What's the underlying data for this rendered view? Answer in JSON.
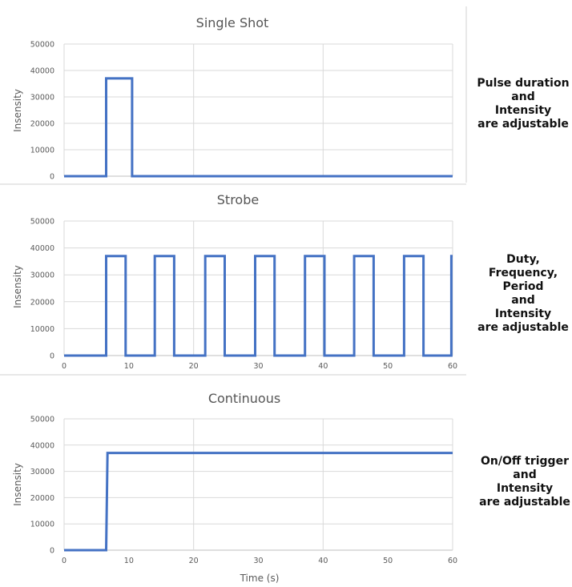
{
  "chart_data": [
    {
      "type": "line",
      "title": "Single Shot",
      "xlabel": "",
      "ylabel": "Insensity",
      "xlim": [
        0,
        60
      ],
      "ylim": [
        0,
        50000
      ],
      "yticks": [
        0,
        10000,
        20000,
        30000,
        40000,
        50000
      ],
      "xticks": [],
      "grid": "horizontal and vertical",
      "series": [
        {
          "x": [
            0,
            6.5,
            6.5,
            10.5,
            10.5,
            60
          ],
          "y": [
            0,
            0,
            37000,
            37000,
            0,
            0
          ]
        }
      ],
      "note": [
        "Pulse duration",
        "and",
        "Intensity",
        "are adjustable"
      ]
    },
    {
      "type": "line",
      "title": "Strobe",
      "xlabel": "",
      "ylabel": "Insensity",
      "xlim": [
        0,
        60
      ],
      "ylim": [
        0,
        50000
      ],
      "yticks": [
        0,
        10000,
        20000,
        30000,
        40000,
        50000
      ],
      "xticks": [
        0,
        10,
        20,
        30,
        40,
        50,
        60
      ],
      "grid": "horizontal and vertical",
      "series": [
        {
          "x": [
            0,
            6.5,
            6.5,
            9.5,
            9.5,
            14,
            14,
            17,
            17,
            21.8,
            21.8,
            24.8,
            24.8,
            29.5,
            29.5,
            32.5,
            32.5,
            37.2,
            37.2,
            40.2,
            40.2,
            44.8,
            44.8,
            47.8,
            47.8,
            52.5,
            52.5,
            55.5,
            55.5,
            59.8,
            59.8,
            60
          ],
          "y": [
            0,
            0,
            37000,
            37000,
            0,
            0,
            37000,
            37000,
            0,
            0,
            37000,
            37000,
            0,
            0,
            37000,
            37000,
            0,
            0,
            37000,
            37000,
            0,
            0,
            37000,
            37000,
            0,
            0,
            37000,
            37000,
            0,
            0,
            37000,
            37000
          ]
        }
      ],
      "note": [
        "Duty,",
        "Frequency,",
        "Period",
        "and",
        "Intensity",
        "are adjustable"
      ]
    },
    {
      "type": "line",
      "title": "Continuous",
      "xlabel": "Time (s)",
      "ylabel": "Insensity",
      "xlim": [
        0,
        60
      ],
      "ylim": [
        0,
        50000
      ],
      "yticks": [
        0,
        10000,
        20000,
        30000,
        40000,
        50000
      ],
      "xticks": [
        0,
        10,
        20,
        30,
        40,
        50,
        60
      ],
      "grid": "horizontal and vertical",
      "series": [
        {
          "x": [
            0,
            6.5,
            6.7,
            60
          ],
          "y": [
            0,
            0,
            37000,
            37000
          ]
        }
      ],
      "note": [
        "On/Off trigger",
        "and",
        "Intensity",
        "are adjustable"
      ]
    }
  ],
  "colors": {
    "series": "#4472c4",
    "grid": "#d9d9d9",
    "axis": "#bfbfbf",
    "separator": "#d0d0d0"
  }
}
